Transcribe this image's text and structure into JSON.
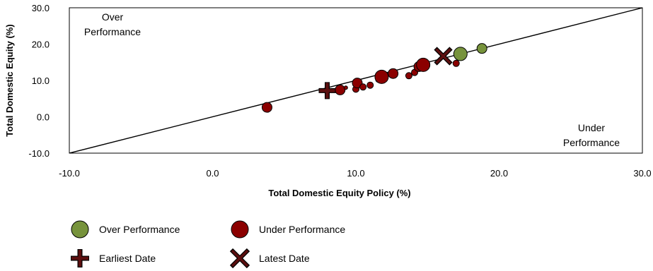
{
  "chart_data": {
    "type": "scatter",
    "xlabel": "Total Domestic Equity Policy (%)",
    "ylabel": "Total Domestic Equity (%)",
    "xlim": [
      -10,
      30
    ],
    "ylim": [
      -10,
      30
    ],
    "x_ticks": [
      "-10.0",
      "0.0",
      "10.0",
      "20.0",
      "30.0"
    ],
    "y_ticks": [
      "-10.0",
      "0.0",
      "10.0",
      "20.0",
      "30.0"
    ],
    "x_tick_values": [
      -10,
      0,
      10,
      20,
      30
    ],
    "y_tick_values": [
      -10,
      0,
      10,
      20,
      30
    ],
    "reference_line": {
      "from": [
        -10,
        -10
      ],
      "to": [
        30,
        30
      ]
    },
    "annotations": {
      "over": [
        "Over",
        "Performance"
      ],
      "under": [
        "Under",
        "Performance"
      ]
    },
    "colors": {
      "over": "#77933c",
      "under": "#8b0000",
      "marker_stroke": "#000000",
      "earliest": "#5c0f0f",
      "latest": "#5c0f0f"
    },
    "points": [
      {
        "x": 3.8,
        "y": 2.6,
        "group": "under",
        "size": 2
      },
      {
        "x": 8.9,
        "y": 7.4,
        "group": "under",
        "size": 2
      },
      {
        "x": 9.3,
        "y": 8.0,
        "group": "under",
        "size": 0
      },
      {
        "x": 10.0,
        "y": 7.6,
        "group": "under",
        "size": 1
      },
      {
        "x": 10.1,
        "y": 9.3,
        "group": "under",
        "size": 2
      },
      {
        "x": 10.5,
        "y": 8.2,
        "group": "under",
        "size": 1
      },
      {
        "x": 11.0,
        "y": 8.7,
        "group": "under",
        "size": 1
      },
      {
        "x": 11.6,
        "y": 10.3,
        "group": "under",
        "size": 1
      },
      {
        "x": 11.8,
        "y": 11.0,
        "group": "under",
        "size": 3
      },
      {
        "x": 12.6,
        "y": 11.9,
        "group": "under",
        "size": 2
      },
      {
        "x": 13.7,
        "y": 11.3,
        "group": "under",
        "size": 1
      },
      {
        "x": 14.1,
        "y": 12.2,
        "group": "under",
        "size": 1
      },
      {
        "x": 14.4,
        "y": 13.8,
        "group": "under",
        "size": 2
      },
      {
        "x": 14.7,
        "y": 14.3,
        "group": "under",
        "size": 3
      },
      {
        "x": 17.0,
        "y": 14.7,
        "group": "under",
        "size": 1
      },
      {
        "x": 17.3,
        "y": 17.3,
        "group": "over",
        "size": 3
      },
      {
        "x": 18.8,
        "y": 18.8,
        "group": "over",
        "size": 2
      }
    ],
    "earliest": {
      "x": 8.0,
      "y": 7.2
    },
    "latest": {
      "x": 16.1,
      "y": 16.7
    },
    "legend": [
      {
        "label": "Over Performance",
        "marker": "circle",
        "color": "#77933c"
      },
      {
        "label": "Under Performance",
        "marker": "circle",
        "color": "#8b0000"
      },
      {
        "label": "Earliest Date",
        "marker": "plus",
        "color": "#5c0f0f"
      },
      {
        "label": "Latest Date",
        "marker": "cross",
        "color": "#5c0f0f"
      }
    ]
  }
}
